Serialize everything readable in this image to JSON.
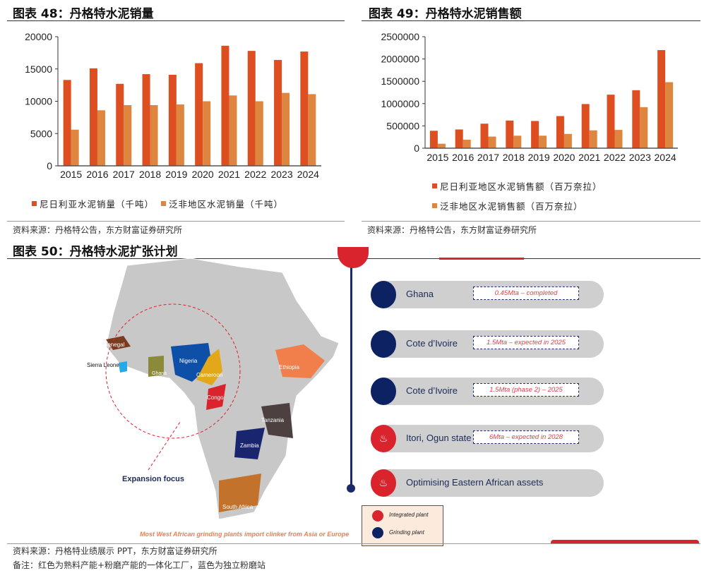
{
  "fig48": {
    "title": "图表 48：丹格特水泥销量",
    "source": "资料来源：丹格特公告，东方财富证券研究所"
  },
  "fig49": {
    "title": "图表 49：丹格特水泥销售额",
    "source": "资料来源：丹格特公告，东方财富证券研究所"
  },
  "fig50": {
    "title": "图表 50：丹格特水泥扩张计划",
    "map_labels": {
      "senegal": "Senegal",
      "sierra_leone": "Sierra Leone",
      "ghana": "Ghana",
      "nigeria": "Nigeria",
      "cameroon": "Cameroon",
      "congo": "Congo",
      "ethiopia": "Ethiopia",
      "tanzania": "Tanzania",
      "zambia": "Zambia",
      "south_africa": "South Africa",
      "expansion": "Expansion focus",
      "clinker": "Most West African grinding plants import clinker from Asia or Europe"
    },
    "plans": [
      {
        "name": "Ghana",
        "detail": "0.45Mta – completed",
        "type": "grinding"
      },
      {
        "name": "Cote d’Ivoire",
        "detail": "1.5Mta – expected in 2025",
        "type": "grinding"
      },
      {
        "name": "Cote d’Ivoire",
        "detail": "1.5Mta (phase 2) – 2025",
        "type": "grinding"
      },
      {
        "name": "Itori, Ogun state",
        "detail": "6Mta – expected in 2028",
        "type": "integrated"
      },
      {
        "name": "Optimising Eastern African assets",
        "detail": "",
        "type": "integrated"
      }
    ],
    "legend": {
      "integrated": "Integrated plant",
      "grinding": "Grinding plant"
    },
    "source": "资料来源：丹格特业绩展示 PPT，东方财富证券研究所",
    "note": "备注：红色为熟料产能+粉磨产能的一体化工厂，蓝色为独立粉磨站"
  },
  "colors": {
    "s1": "#dd4e20",
    "s2": "#de853f",
    "navy": "#0d2263",
    "red": "#d9232d"
  },
  "chart_data": [
    {
      "type": "bar",
      "title": "丹格特水泥销量",
      "categories": [
        "2015",
        "2016",
        "2017",
        "2018",
        "2019",
        "2020",
        "2021",
        "2022",
        "2023",
        "2024"
      ],
      "series": [
        {
          "name": "尼日利亚水泥销量（千吨）",
          "values": [
            13300,
            15100,
            12700,
            14200,
            14100,
            15900,
            18600,
            17800,
            16400,
            17700
          ]
        },
        {
          "name": "泛非地区水泥销量（千吨）",
          "values": [
            5600,
            8600,
            9400,
            9400,
            9500,
            10000,
            10900,
            10000,
            11300,
            11100
          ]
        }
      ],
      "yticks": [
        "0",
        "5000",
        "10000",
        "15000",
        "20000"
      ],
      "ylim": [
        0,
        20000
      ],
      "legend": "bottom"
    },
    {
      "type": "bar",
      "title": "丹格特水泥销售额",
      "categories": [
        "2015",
        "2016",
        "2017",
        "2018",
        "2019",
        "2020",
        "2021",
        "2022",
        "2023",
        "2024"
      ],
      "series": [
        {
          "name": "尼日利亚地区水泥销售额（百万奈拉）",
          "values": [
            390000,
            420000,
            550000,
            620000,
            610000,
            720000,
            990000,
            1200000,
            1300000,
            2200000
          ]
        },
        {
          "name": "泛非地区水泥销售额（百万奈拉）",
          "values": [
            100000,
            190000,
            260000,
            280000,
            280000,
            320000,
            400000,
            410000,
            920000,
            1480000
          ]
        }
      ],
      "yticks": [
        "0",
        "500000",
        "1000000",
        "1500000",
        "2000000",
        "2500000"
      ],
      "ylim": [
        0,
        2500000
      ],
      "legend": "bottom"
    }
  ]
}
